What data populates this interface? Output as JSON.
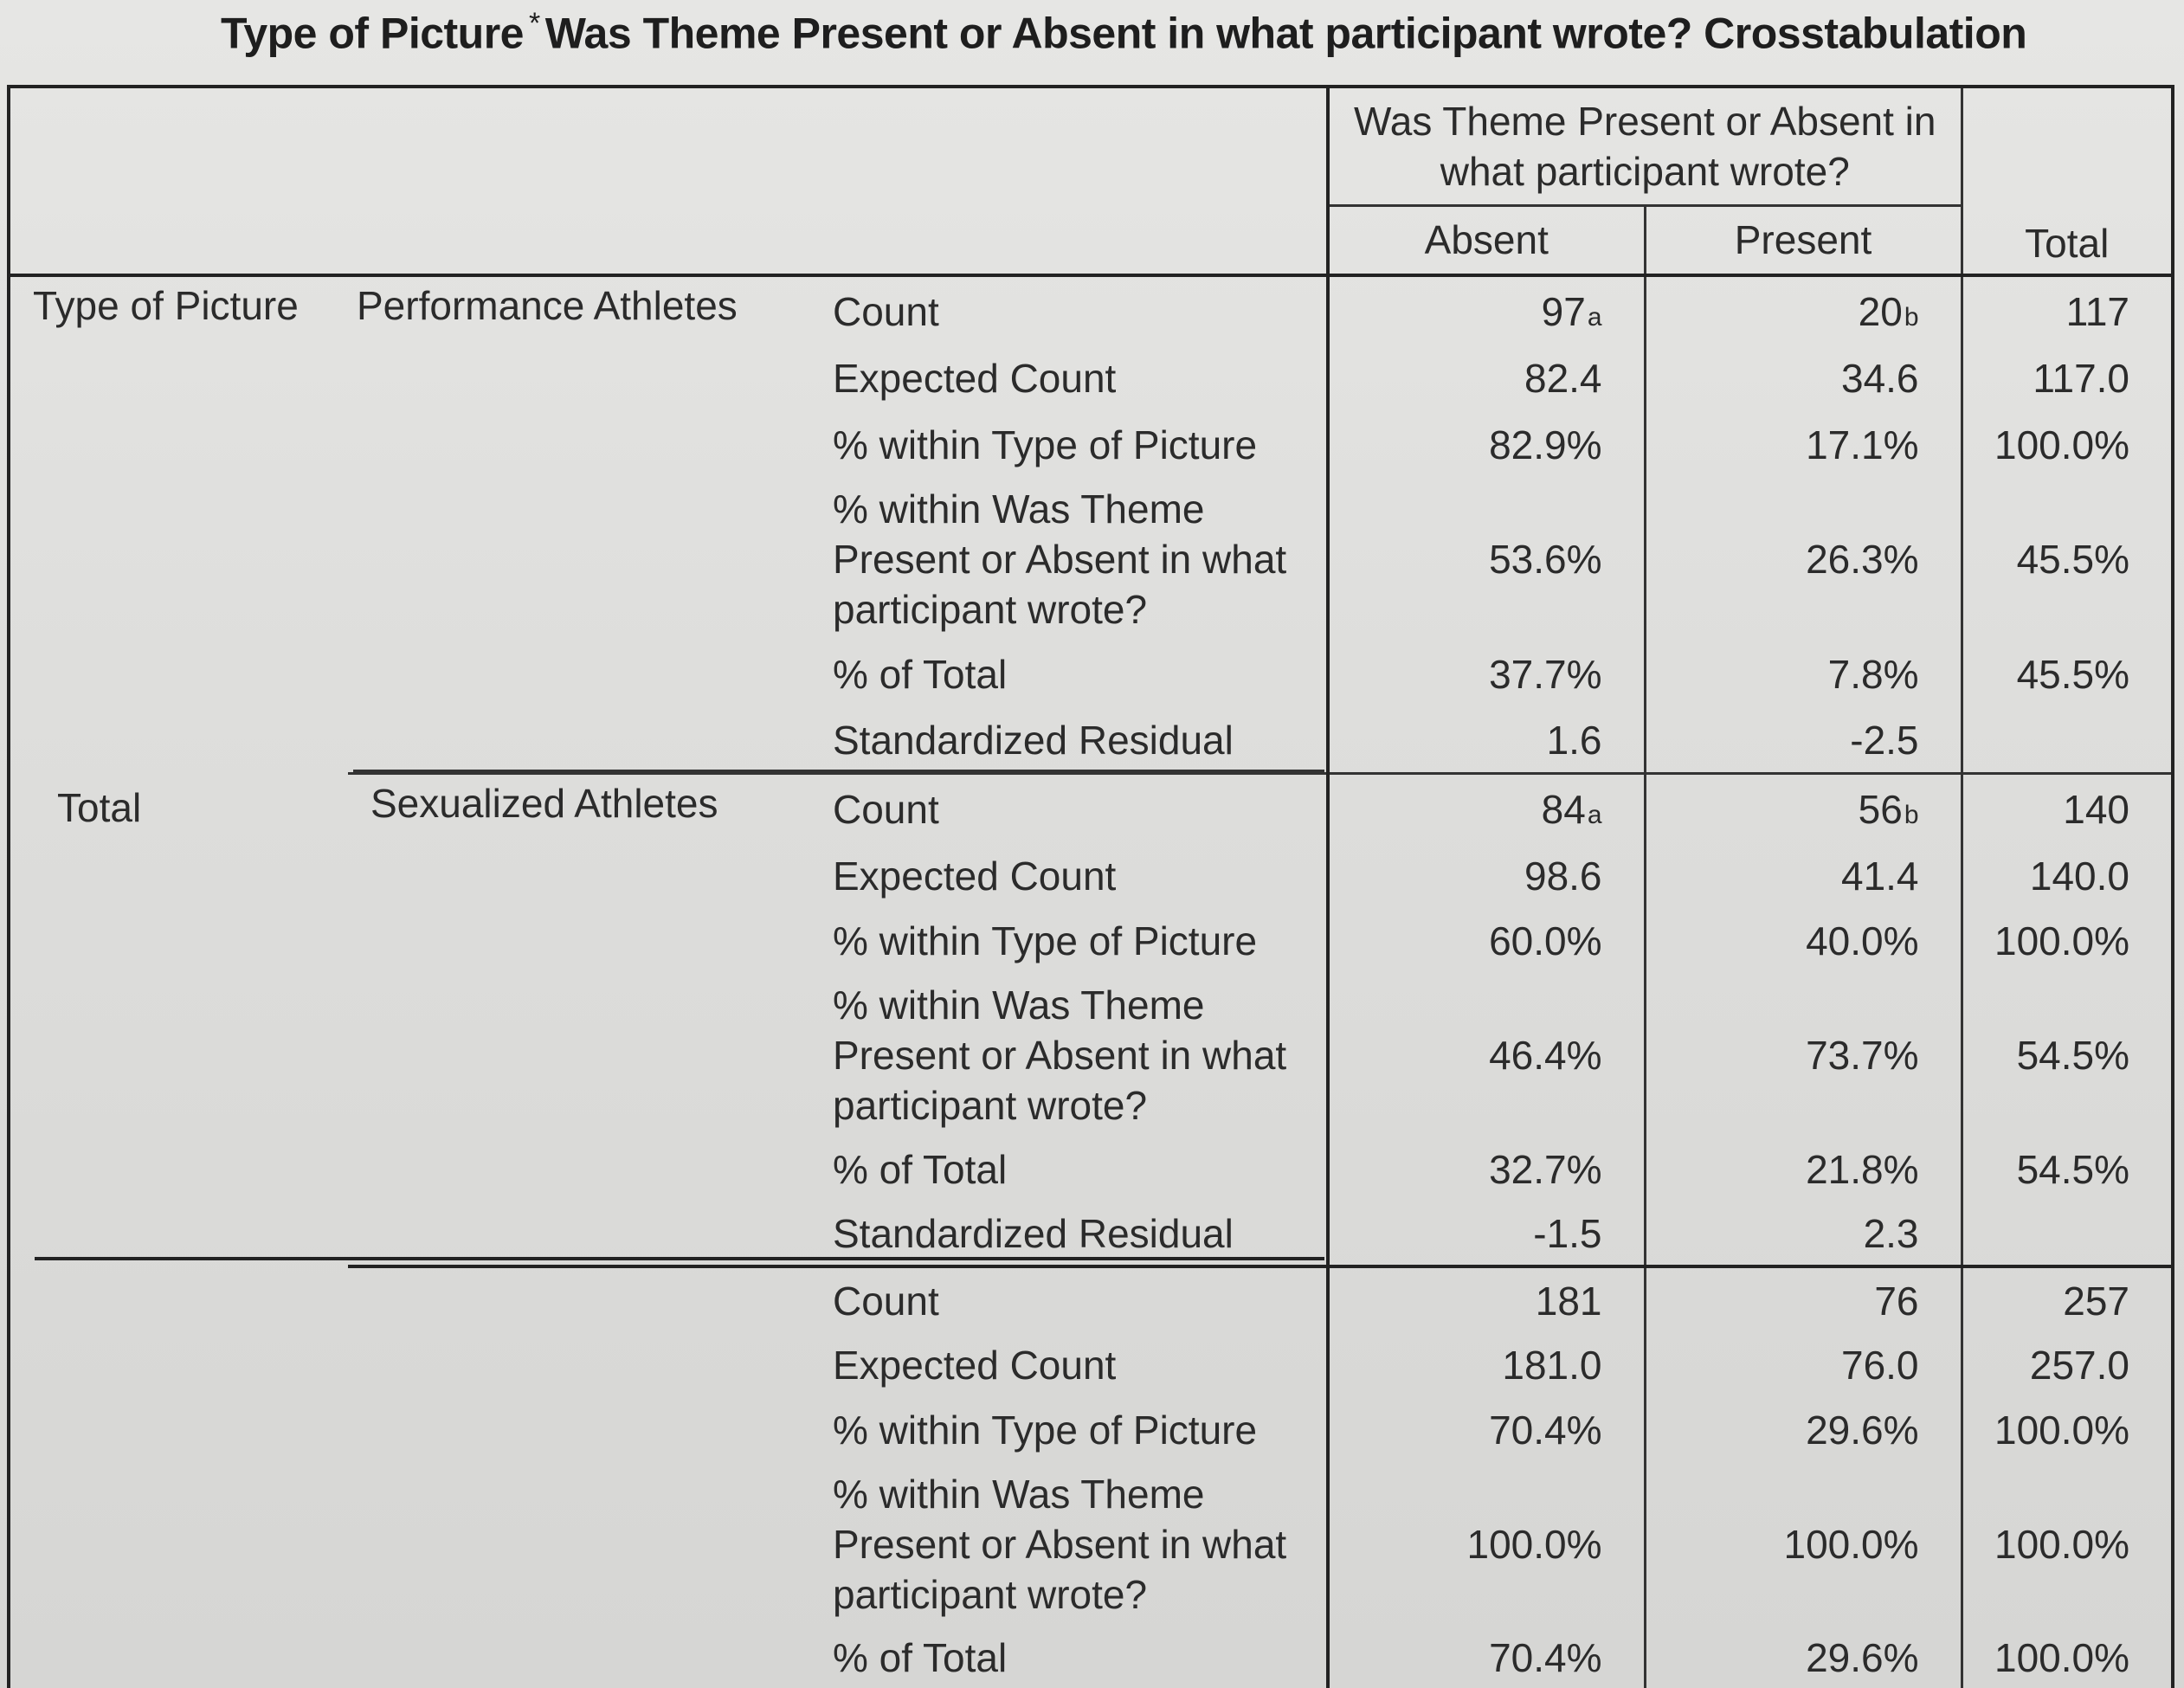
{
  "title": {
    "left": "Type of Picture",
    "star": "*",
    "right": "Was Theme Present or Absent in what participant wrote? Crosstabulation"
  },
  "header": {
    "group": "Was Theme Present or Absent in what participant wrote?",
    "col_absent": "Absent",
    "col_present": "Present",
    "col_total": "Total"
  },
  "rows": {
    "type_of_picture": "Type of Picture",
    "performance": "Performance Athletes",
    "sexualized": "Sexualized Athletes",
    "total": "Total"
  },
  "stats": {
    "count": "Count",
    "expected": "Expected Count",
    "within_type": "% within Type of Picture",
    "within_theme": "% within Was Theme Present or Absent in what participant wrote?",
    "of_total": "% of Total",
    "std_resid": "Standardized Residual"
  },
  "performance": {
    "count": {
      "absent": "97",
      "absent_sub": "a",
      "present": "20",
      "present_sub": "b",
      "total": "117"
    },
    "expected": {
      "absent": "82.4",
      "present": "34.6",
      "total": "117.0"
    },
    "within_type": {
      "absent": "82.9%",
      "present": "17.1%",
      "total": "100.0%"
    },
    "within_theme": {
      "absent": "53.6%",
      "present": "26.3%",
      "total": "45.5%"
    },
    "of_total": {
      "absent": "37.7%",
      "present": "7.8%",
      "total": "45.5%"
    },
    "std_resid": {
      "absent": "1.6",
      "present": "-2.5",
      "total": ""
    }
  },
  "sexualized": {
    "count": {
      "absent": "84",
      "absent_sub": "a",
      "present": "56",
      "present_sub": "b",
      "total": "140"
    },
    "expected": {
      "absent": "98.6",
      "present": "41.4",
      "total": "140.0"
    },
    "within_type": {
      "absent": "60.0%",
      "present": "40.0%",
      "total": "100.0%"
    },
    "within_theme": {
      "absent": "46.4%",
      "present": "73.7%",
      "total": "54.5%"
    },
    "of_total": {
      "absent": "32.7%",
      "present": "21.8%",
      "total": "54.5%"
    },
    "std_resid": {
      "absent": "-1.5",
      "present": "2.3",
      "total": ""
    }
  },
  "total": {
    "count": {
      "absent": "181",
      "present": "76",
      "total": "257"
    },
    "expected": {
      "absent": "181.0",
      "present": "76.0",
      "total": "257.0"
    },
    "within_type": {
      "absent": "70.4%",
      "present": "29.6%",
      "total": "100.0%"
    },
    "within_theme": {
      "absent": "100.0%",
      "present": "100.0%",
      "total": "100.0%"
    },
    "of_total": {
      "absent": "70.4%",
      "present": "29.6%",
      "total": "100.0%"
    }
  }
}
